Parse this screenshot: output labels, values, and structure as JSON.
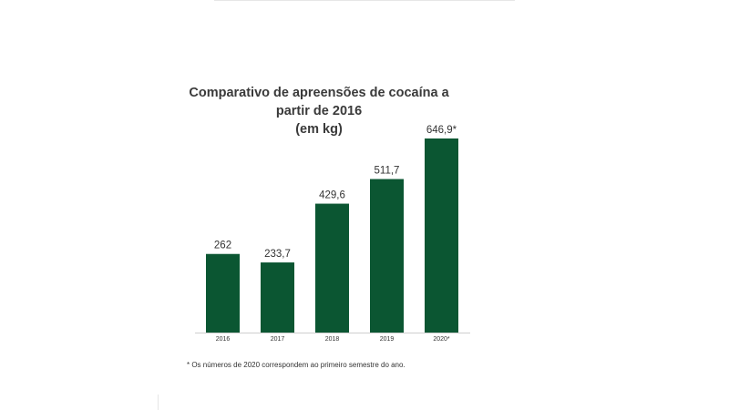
{
  "chart_data": {
    "type": "bar",
    "title": "Comparativo de apreensões de cocaína a partir de 2016",
    "subtitle": "(em kg)",
    "categories": [
      "2016",
      "2017",
      "2018",
      "2019",
      "2020*"
    ],
    "values": [
      262,
      233.7,
      429.6,
      511.7,
      646.9
    ],
    "value_labels": [
      "262",
      "233,7",
      "429,6",
      "511,7",
      "646,9*"
    ],
    "ylim": [
      0,
      646.9
    ],
    "grid": false,
    "legend": "none",
    "bar_color": "#0b5632",
    "footnote": "* Os números de 2020 correspondem ao primeiro semestre do ano."
  }
}
